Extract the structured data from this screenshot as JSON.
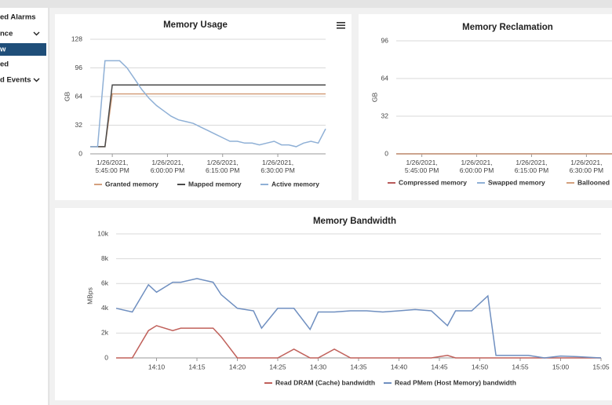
{
  "sidebar": {
    "items": [
      "ed Alarms",
      "nce",
      "w",
      "ed",
      "d Events"
    ]
  },
  "chart_data": [
    {
      "type": "line",
      "title": "Memory Usage",
      "ylabel": "GB",
      "x": [
        "2021-01-26T17:39",
        "2021-01-26T17:41",
        "2021-01-26T17:43",
        "2021-01-26T17:45",
        "2021-01-26T17:47",
        "2021-01-26T17:49",
        "2021-01-26T17:51",
        "2021-01-26T17:53",
        "2021-01-26T17:55",
        "2021-01-26T17:57",
        "2021-01-26T17:59",
        "2021-01-26T18:01",
        "2021-01-26T18:03",
        "2021-01-26T18:05",
        "2021-01-26T18:07",
        "2021-01-26T18:09",
        "2021-01-26T18:11",
        "2021-01-26T18:13",
        "2021-01-26T18:15",
        "2021-01-26T18:17",
        "2021-01-26T18:19",
        "2021-01-26T18:21",
        "2021-01-26T18:23",
        "2021-01-26T18:25",
        "2021-01-26T18:27",
        "2021-01-26T18:29",
        "2021-01-26T18:31",
        "2021-01-26T18:33",
        "2021-01-26T18:35",
        "2021-01-26T18:37",
        "2021-01-26T18:39",
        "2021-01-26T18:41",
        "2021-01-26T18:43"
      ],
      "series": [
        {
          "name": "Granted memory",
          "color": "#d4a07e",
          "values": [
            8,
            8,
            8,
            67,
            67,
            67,
            67,
            67,
            67,
            67,
            67,
            67,
            67,
            67,
            67,
            67,
            67,
            67,
            67,
            67,
            67,
            67,
            67,
            67,
            67,
            67,
            67,
            67,
            67,
            67,
            67,
            67,
            67
          ]
        },
        {
          "name": "Mapped memory",
          "color": "#4a4a4a",
          "values": [
            8,
            8,
            8,
            77,
            77,
            77,
            77,
            77,
            77,
            77,
            77,
            77,
            77,
            77,
            77,
            77,
            77,
            77,
            77,
            77,
            77,
            77,
            77,
            77,
            77,
            77,
            77,
            77,
            77,
            77,
            77,
            77,
            77
          ]
        },
        {
          "name": "Active memory",
          "color": "#8fb0d6",
          "values": [
            8,
            8,
            104,
            104,
            104,
            96,
            84,
            72,
            62,
            54,
            48,
            42,
            38,
            36,
            34,
            30,
            26,
            22,
            18,
            14,
            14,
            12,
            12,
            10,
            12,
            14,
            10,
            10,
            8,
            12,
            14,
            12,
            28
          ]
        }
      ],
      "xlim": [
        "2021-01-26T17:39",
        "2021-01-26T18:43"
      ],
      "xticks": [
        {
          "value": "2021-01-26T17:45",
          "label": "1/26/2021, 5:45:00 PM"
        },
        {
          "value": "2021-01-26T18:00",
          "label": "1/26/2021, 6:00:00 PM"
        },
        {
          "value": "2021-01-26T18:15",
          "label": "1/26/2021, 6:15:00 PM"
        },
        {
          "value": "2021-01-26T18:30",
          "label": "1/26/2021, 6:30:00 PM"
        }
      ],
      "ylim": [
        0,
        128
      ],
      "yticks": [
        0,
        32,
        64,
        96,
        128
      ],
      "grid": true
    },
    {
      "type": "line",
      "title": "Memory Reclamation",
      "ylabel": "GB",
      "x": [
        "2021-01-26T17:38",
        "2021-01-26T18:37"
      ],
      "series": [
        {
          "name": "Compressed memory",
          "color": "#b85a5a",
          "values": [
            0,
            0
          ]
        },
        {
          "name": "Swapped memory",
          "color": "#8fb0d6",
          "values": [
            0,
            0
          ]
        },
        {
          "name": "Ballooned memory",
          "color": "#d4a07e",
          "values": [
            0,
            0
          ]
        }
      ],
      "xlim": [
        "2021-01-26T17:38",
        "2021-01-26T18:37"
      ],
      "xticks": [
        {
          "value": "2021-01-26T17:45",
          "label": "1/26/2021, 5:45:00 PM"
        },
        {
          "value": "2021-01-26T18:00",
          "label": "1/26/2021, 6:00:00 PM"
        },
        {
          "value": "2021-01-26T18:15",
          "label": "1/26/2021, 6:15:00 PM"
        },
        {
          "value": "2021-01-26T18:30",
          "label": "1/26/2021, 6:30:00 PM"
        }
      ],
      "ylim": [
        0,
        96
      ],
      "yticks": [
        0,
        32,
        64,
        96
      ],
      "grid": true
    },
    {
      "type": "line",
      "title": "Memory Bandwidth",
      "ylabel": "MBps",
      "x": [
        "14:05",
        "14:07",
        "14:09",
        "14:10",
        "14:12",
        "14:13",
        "14:15",
        "14:17",
        "14:18",
        "14:20",
        "14:22",
        "14:23",
        "14:25",
        "14:27",
        "14:29",
        "14:30",
        "14:32",
        "14:34",
        "14:36",
        "14:38",
        "14:40",
        "14:42",
        "14:44",
        "14:46",
        "14:47",
        "14:49",
        "14:51",
        "14:52",
        "14:56",
        "14:58",
        "15:00",
        "15:02",
        "15:05"
      ],
      "series": [
        {
          "name": "Read DRAM (Cache) bandwidth",
          "color": "#c0605a",
          "values": [
            0,
            0,
            2200,
            2600,
            2200,
            2400,
            2400,
            2400,
            1700,
            0,
            0,
            0,
            0,
            700,
            0,
            0,
            700,
            0,
            0,
            0,
            0,
            0,
            0,
            200,
            0,
            0,
            0,
            0,
            0,
            0,
            0,
            0,
            0
          ]
        },
        {
          "name": "Read PMem (Host Memory) bandwidth",
          "color": "#6f8fc0",
          "values": [
            4000,
            3700,
            5900,
            5300,
            6100,
            6100,
            6400,
            6100,
            5100,
            4000,
            3800,
            2400,
            4000,
            4000,
            2300,
            3700,
            3700,
            3800,
            3800,
            3700,
            3800,
            3900,
            3800,
            2600,
            3800,
            3800,
            5000,
            200,
            200,
            0,
            150,
            100,
            0
          ]
        }
      ],
      "xlim": [
        "14:05",
        "15:05"
      ],
      "xticks": [
        "14:10",
        "14:15",
        "14:20",
        "14:25",
        "14:30",
        "14:35",
        "14:40",
        "14:45",
        "14:50",
        "14:55",
        "15:00",
        "15:05"
      ],
      "ylim": [
        0,
        10000
      ],
      "yticks": [
        0,
        {
          "value": 2000,
          "label": "2k"
        },
        {
          "value": 4000,
          "label": "4k"
        },
        {
          "value": 6000,
          "label": "6k"
        },
        {
          "value": 8000,
          "label": "8k"
        },
        {
          "value": 10000,
          "label": "10k"
        }
      ],
      "grid": true
    }
  ]
}
